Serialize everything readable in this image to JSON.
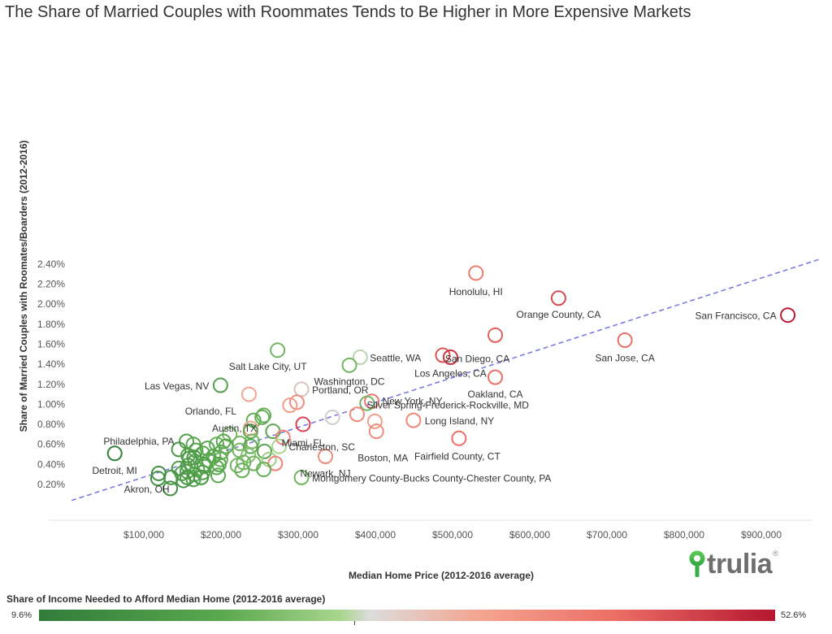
{
  "chart_data": {
    "type": "scatter",
    "title": "The Share of Married Couples with Roommates Tends to Be Higher in More Expensive Markets",
    "xlabel": "Median Home Price (2012-2016 average)",
    "ylabel": "Share of Married Couples with Roomates/Boarders (2012-2016)",
    "xlim": [
      0,
      1000000
    ],
    "ylim": [
      0.0005,
      0.0245
    ],
    "x_ticks": [
      {
        "value": 100000,
        "label": "$100,000"
      },
      {
        "value": 200000,
        "label": "$200,000"
      },
      {
        "value": 300000,
        "label": "$300,000"
      },
      {
        "value": 400000,
        "label": "$400,000"
      },
      {
        "value": 500000,
        "label": "$500,000"
      },
      {
        "value": 600000,
        "label": "$600,000"
      },
      {
        "value": 700000,
        "label": "$700,000"
      },
      {
        "value": 800000,
        "label": "$800,000"
      },
      {
        "value": 900000,
        "label": "$900,000"
      }
    ],
    "y_ticks": [
      {
        "value": 0.002,
        "label": "0.20%"
      },
      {
        "value": 0.004,
        "label": "0.40%"
      },
      {
        "value": 0.006,
        "label": "0.60%"
      },
      {
        "value": 0.008,
        "label": "0.80%"
      },
      {
        "value": 0.01,
        "label": "1.00%"
      },
      {
        "value": 0.012,
        "label": "1.20%"
      },
      {
        "value": 0.014,
        "label": "1.40%"
      },
      {
        "value": 0.016,
        "label": "1.60%"
      },
      {
        "value": 0.018,
        "label": "1.80%"
      },
      {
        "value": 0.02,
        "label": "2.00%"
      },
      {
        "value": 0.022,
        "label": "2.20%"
      },
      {
        "value": 0.024,
        "label": "2.40%"
      }
    ],
    "grid": false,
    "trend_line": {
      "x": [
        0,
        970000
      ],
      "y": [
        0.0004,
        0.0245
      ],
      "style": "dashed",
      "color": "#7a7ae0"
    },
    "color_legend": {
      "title": "Share of Income Needed to Afford Median Home (2012-2016 average)",
      "min_label": "9.6%",
      "max_label": "52.6%",
      "min": 0.096,
      "max": 0.526,
      "colors": [
        "#2f7d3a",
        "#a9d68e",
        "#dcdcdc",
        "#f4a48f",
        "#b5162f"
      ]
    },
    "points": [
      {
        "name": "Honolulu, HI",
        "x": 524000,
        "y": 0.0231,
        "c": 0.4,
        "label": true
      },
      {
        "name": "Orange County, CA",
        "x": 631000,
        "y": 0.0206,
        "c": 0.46,
        "label": true
      },
      {
        "name": "San Francisco, CA",
        "x": 928000,
        "y": 0.0189,
        "c": 0.52,
        "label": true
      },
      {
        "name": "San Diego, CA",
        "x": 549000,
        "y": 0.0169,
        "c": 0.44,
        "label": true
      },
      {
        "name": "San Jose, CA",
        "x": 717000,
        "y": 0.0164,
        "c": 0.42,
        "label": true
      },
      {
        "name": "Salt Lake City, UT",
        "x": 267000,
        "y": 0.0154,
        "c": 0.22,
        "label": true
      },
      {
        "name": "Los Angeles, CA",
        "x": 481000,
        "y": 0.0149,
        "c": 0.45,
        "label": false
      },
      {
        "name": "Los Angeles, CA",
        "x": 491000,
        "y": 0.0147,
        "c": 0.49,
        "label": true
      },
      {
        "name": "Seattle, WA",
        "x": 374000,
        "y": 0.0147,
        "c": 0.28,
        "label": true
      },
      {
        "name": "Washington, DC",
        "x": 360000,
        "y": 0.0139,
        "c": 0.22,
        "label": true
      },
      {
        "name": "Oakland, CA",
        "x": 549000,
        "y": 0.0127,
        "c": 0.42,
        "label": true
      },
      {
        "name": "Las Vegas, NV",
        "x": 193000,
        "y": 0.0119,
        "c": 0.18,
        "label": true
      },
      {
        "name": "Portland, OR",
        "x": 298000,
        "y": 0.0115,
        "c": 0.3,
        "label": true
      },
      {
        "name": "",
        "x": 230000,
        "y": 0.011,
        "c": 0.33,
        "label": false
      },
      {
        "name": "",
        "x": 292000,
        "y": 0.0102,
        "c": 0.37,
        "label": false
      },
      {
        "name": "",
        "x": 283000,
        "y": 0.0099,
        "c": 0.34,
        "label": false
      },
      {
        "name": "New York, NY",
        "x": 389000,
        "y": 0.0103,
        "c": 0.41,
        "label": true
      },
      {
        "name": "",
        "x": 383000,
        "y": 0.0101,
        "c": 0.22,
        "label": false
      },
      {
        "name": "Austin, TX",
        "x": 249000,
        "y": 0.0089,
        "c": 0.21,
        "label": true
      },
      {
        "name": "",
        "x": 247000,
        "y": 0.0087,
        "c": 0.21,
        "label": false
      },
      {
        "name": "Silver Spring-Frederick-Rockville, MD",
        "x": 370000,
        "y": 0.009,
        "c": 0.37,
        "label": true
      },
      {
        "name": "",
        "x": 338000,
        "y": 0.0087,
        "c": 0.29,
        "label": false
      },
      {
        "name": "",
        "x": 236000,
        "y": 0.0084,
        "c": 0.21,
        "label": false
      },
      {
        "name": "",
        "x": 393000,
        "y": 0.0083,
        "c": 0.34,
        "label": false
      },
      {
        "name": "Long Island, NY",
        "x": 443000,
        "y": 0.0084,
        "c": 0.38,
        "label": true
      },
      {
        "name": "Miami, FL",
        "x": 300000,
        "y": 0.008,
        "c": 0.47,
        "label": true
      },
      {
        "name": "Orlando, FL",
        "x": 232000,
        "y": 0.0076,
        "c": 0.33,
        "label": true
      },
      {
        "name": "",
        "x": 232000,
        "y": 0.0073,
        "c": 0.2,
        "label": false
      },
      {
        "name": "",
        "x": 261000,
        "y": 0.0073,
        "c": 0.2,
        "label": false
      },
      {
        "name": "",
        "x": 205000,
        "y": 0.007,
        "c": 0.23,
        "label": false
      },
      {
        "name": "",
        "x": 274000,
        "y": 0.0067,
        "c": 0.39,
        "label": false
      },
      {
        "name": "Boston, MA",
        "x": 395000,
        "y": 0.0073,
        "c": 0.37,
        "label": true
      },
      {
        "name": "Fairfield County, CT",
        "x": 502000,
        "y": 0.0066,
        "c": 0.42,
        "label": true
      },
      {
        "name": "Charleston, SC",
        "x": 269000,
        "y": 0.0058,
        "c": 0.27,
        "label": true
      },
      {
        "name": "Philadelphia, PA",
        "x": 149000,
        "y": 0.0063,
        "c": 0.18,
        "label": true
      },
      {
        "name": "",
        "x": 158000,
        "y": 0.006,
        "c": 0.2,
        "label": false
      },
      {
        "name": "",
        "x": 197000,
        "y": 0.0063,
        "c": 0.2,
        "label": false
      },
      {
        "name": "",
        "x": 234000,
        "y": 0.0063,
        "c": 0.22,
        "label": false
      },
      {
        "name": "",
        "x": 218000,
        "y": 0.0061,
        "c": 0.22,
        "label": false
      },
      {
        "name": "",
        "x": 188000,
        "y": 0.006,
        "c": 0.21,
        "label": false
      },
      {
        "name": "",
        "x": 200000,
        "y": 0.0058,
        "c": 0.19,
        "label": false
      },
      {
        "name": "",
        "x": 232000,
        "y": 0.0058,
        "c": 0.2,
        "label": false
      },
      {
        "name": "",
        "x": 176000,
        "y": 0.0056,
        "c": 0.19,
        "label": false
      },
      {
        "name": "",
        "x": 139000,
        "y": 0.0055,
        "c": 0.16,
        "label": false
      },
      {
        "name": "",
        "x": 161000,
        "y": 0.0054,
        "c": 0.19,
        "label": false
      },
      {
        "name": "",
        "x": 218000,
        "y": 0.0054,
        "c": 0.22,
        "label": false
      },
      {
        "name": "",
        "x": 250000,
        "y": 0.0053,
        "c": 0.19,
        "label": false
      },
      {
        "name": "",
        "x": 194000,
        "y": 0.0052,
        "c": 0.2,
        "label": false
      },
      {
        "name": "",
        "x": 170000,
        "y": 0.0051,
        "c": 0.2,
        "label": false
      },
      {
        "name": "",
        "x": 151000,
        "y": 0.0049,
        "c": 0.18,
        "label": false
      },
      {
        "name": "",
        "x": 229000,
        "y": 0.0049,
        "c": 0.24,
        "label": false
      },
      {
        "name": "",
        "x": 184000,
        "y": 0.0048,
        "c": 0.2,
        "label": false
      },
      {
        "name": "",
        "x": 159000,
        "y": 0.0047,
        "c": 0.16,
        "label": false
      },
      {
        "name": "",
        "x": 153000,
        "y": 0.0046,
        "c": 0.17,
        "label": false
      },
      {
        "name": "",
        "x": 193000,
        "y": 0.0045,
        "c": 0.21,
        "label": false
      },
      {
        "name": "",
        "x": 256000,
        "y": 0.0045,
        "c": 0.26,
        "label": false
      },
      {
        "name": "",
        "x": 178000,
        "y": 0.0044,
        "c": 0.2,
        "label": false
      },
      {
        "name": "",
        "x": 160000,
        "y": 0.0043,
        "c": 0.18,
        "label": false
      },
      {
        "name": "",
        "x": 223000,
        "y": 0.0042,
        "c": 0.22,
        "label": false
      },
      {
        "name": "",
        "x": 236000,
        "y": 0.0041,
        "c": 0.22,
        "label": false
      },
      {
        "name": "",
        "x": 264000,
        "y": 0.0041,
        "c": 0.39,
        "label": false
      },
      {
        "name": "",
        "x": 172000,
        "y": 0.004,
        "c": 0.18,
        "label": false
      },
      {
        "name": "",
        "x": 191000,
        "y": 0.004,
        "c": 0.2,
        "label": false
      },
      {
        "name": "",
        "x": 215000,
        "y": 0.0039,
        "c": 0.22,
        "label": false
      },
      {
        "name": "",
        "x": 151000,
        "y": 0.0039,
        "c": 0.17,
        "label": false
      },
      {
        "name": "",
        "x": 172000,
        "y": 0.0038,
        "c": 0.19,
        "label": false
      },
      {
        "name": "",
        "x": 188000,
        "y": 0.0037,
        "c": 0.2,
        "label": false
      },
      {
        "name": "",
        "x": 139000,
        "y": 0.0036,
        "c": 0.17,
        "label": false
      },
      {
        "name": "",
        "x": 163000,
        "y": 0.0035,
        "c": 0.19,
        "label": false
      },
      {
        "name": "",
        "x": 249000,
        "y": 0.0035,
        "c": 0.21,
        "label": false
      },
      {
        "name": "",
        "x": 221000,
        "y": 0.0034,
        "c": 0.21,
        "label": false
      },
      {
        "name": "",
        "x": 150000,
        "y": 0.0033,
        "c": 0.18,
        "label": false
      },
      {
        "name": "",
        "x": 170000,
        "y": 0.0032,
        "c": 0.18,
        "label": false
      },
      {
        "name": "",
        "x": 143000,
        "y": 0.0031,
        "c": 0.17,
        "label": false
      },
      {
        "name": "",
        "x": 159000,
        "y": 0.003,
        "c": 0.18,
        "label": false
      },
      {
        "name": "",
        "x": 190000,
        "y": 0.0029,
        "c": 0.2,
        "label": false
      },
      {
        "name": "",
        "x": 129000,
        "y": 0.0027,
        "c": 0.16,
        "label": false
      },
      {
        "name": "",
        "x": 150000,
        "y": 0.0027,
        "c": 0.17,
        "label": false
      },
      {
        "name": "",
        "x": 168000,
        "y": 0.0027,
        "c": 0.16,
        "label": false
      },
      {
        "name": "",
        "x": 158000,
        "y": 0.0025,
        "c": 0.18,
        "label": false
      },
      {
        "name": "",
        "x": 112000,
        "y": 0.0026,
        "c": 0.15,
        "label": false
      },
      {
        "name": "",
        "x": 145000,
        "y": 0.0024,
        "c": 0.16,
        "label": false
      },
      {
        "name": "",
        "x": 113000,
        "y": 0.0031,
        "c": 0.14,
        "label": false
      },
      {
        "name": "Newark, NJ",
        "x": 329000,
        "y": 0.0048,
        "c": 0.37,
        "label": true
      },
      {
        "name": "Montgomery County-Bucks County-Chester County, PA",
        "x": 298000,
        "y": 0.0027,
        "c": 0.22,
        "label": true
      },
      {
        "name": "Detroit, MI",
        "x": 56000,
        "y": 0.0051,
        "c": 0.1,
        "label": true
      },
      {
        "name": "Akron, OH",
        "x": 128000,
        "y": 0.0016,
        "c": 0.14,
        "label": true
      }
    ]
  },
  "logo": {
    "text": "trulia",
    "mark": "®"
  }
}
